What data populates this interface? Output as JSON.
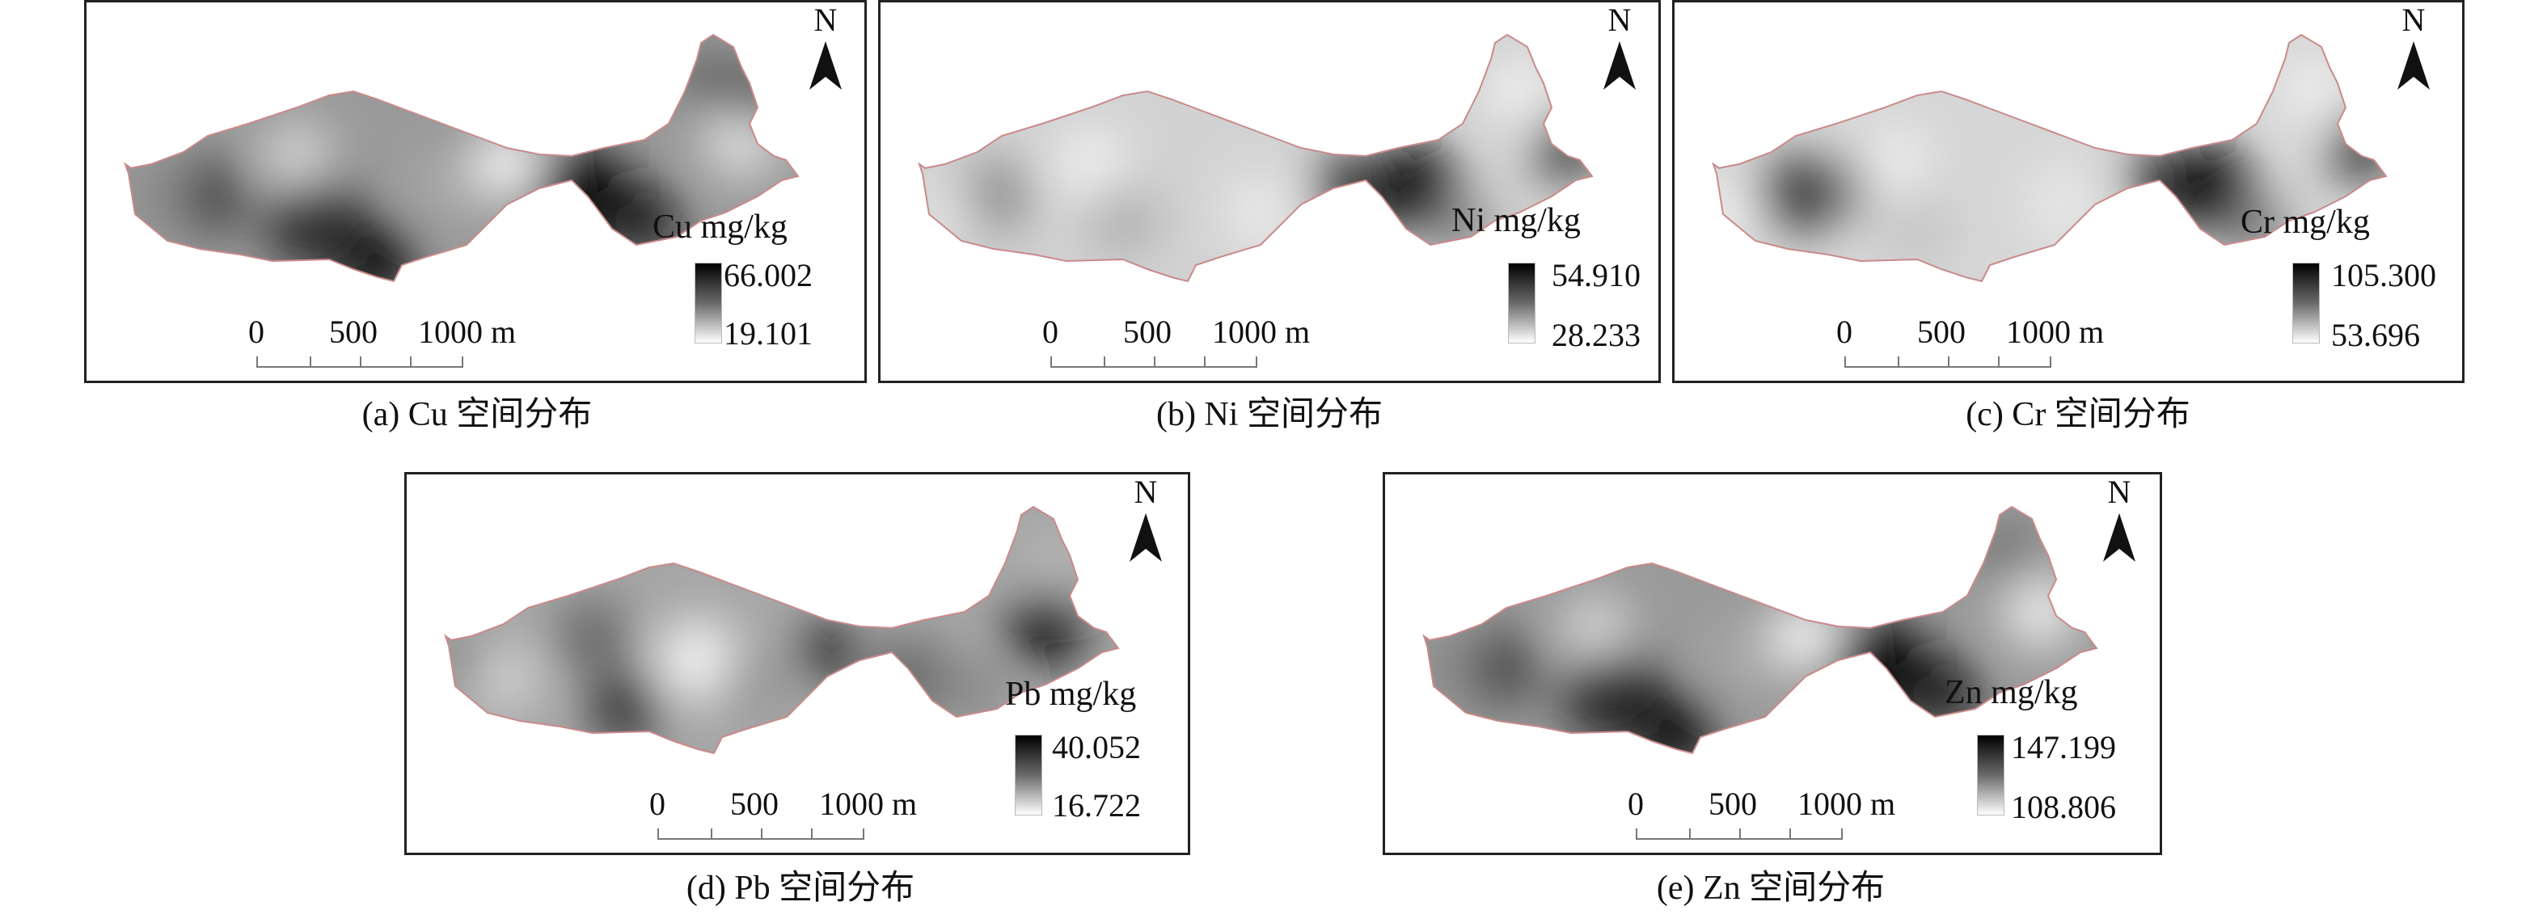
{
  "panels": [
    {
      "id": "a",
      "element": "Cu",
      "legend_title": "Cu mg/kg",
      "max": "66.002",
      "min": "19.101",
      "caption": "(a) Cu 空间分布"
    },
    {
      "id": "b",
      "element": "Ni",
      "legend_title": "Ni mg/kg",
      "max": "54.910",
      "min": "28.233",
      "caption": "(b) Ni 空间分布"
    },
    {
      "id": "c",
      "element": "Cr",
      "legend_title": "Cr mg/kg",
      "max": "105.300",
      "min": "53.696",
      "caption": "(c) Cr 空间分布"
    },
    {
      "id": "d",
      "element": "Pb",
      "legend_title": "Pb mg/kg",
      "max": "40.052",
      "min": "16.722",
      "caption": "(d) Pb 空间分布"
    },
    {
      "id": "e",
      "element": "Zn",
      "legend_title": "Zn mg/kg",
      "max": "147.199",
      "min": "108.806",
      "caption": "(e) Zn 空间分布"
    }
  ],
  "north_label": "N",
  "scale_bar": {
    "labels": [
      "0",
      "500",
      "1000 m"
    ]
  },
  "colors": {
    "high": "#000000",
    "low": "#ffffff",
    "boundary": "#c98a8a",
    "frame": "#222222"
  }
}
